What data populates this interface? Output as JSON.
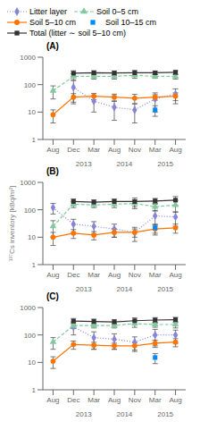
{
  "chart_data": [
    {
      "type": "line",
      "title": "(A)",
      "legend": "top",
      "log": "y",
      "ylim": [
        1,
        1000
      ],
      "yticks": [
        1,
        10,
        100,
        1000
      ],
      "categories": [
        "Aug",
        "Dec",
        "Mar",
        "Aug",
        "Nov",
        "Mar",
        "Aug"
      ],
      "annotations": [
        {
          "text": "2013",
          "x": 1.5
        },
        {
          "text": "2014",
          "x": 3.5
        },
        {
          "text": "2015",
          "x": 5.5
        }
      ],
      "series": [
        {
          "name": "Litter layer",
          "color": "#8884d8",
          "marker": "diamond",
          "line_style": "dotted",
          "values": [
            null,
            80,
            25,
            15,
            12,
            30,
            45
          ],
          "errors": [
            null,
            60,
            15,
            10,
            8,
            20,
            25
          ]
        },
        {
          "name": "Soil 0–5 cm",
          "color": "#82ca9d",
          "marker": "triangle",
          "line_style": "dashed",
          "values": [
            60,
            200,
            200,
            200,
            220,
            200,
            200
          ],
          "errors": [
            30,
            50,
            40,
            40,
            50,
            30,
            40
          ]
        },
        {
          "name": "Soil 5–10 cm",
          "color": "#ff7300",
          "marker": "circle",
          "line_style": "solid",
          "values": [
            8,
            35,
            38,
            35,
            32,
            35,
            38
          ],
          "errors": [
            4,
            12,
            10,
            10,
            12,
            8,
            12
          ]
        },
        {
          "name": "Soil 10–15 cm",
          "color": "#0088fe",
          "marker": "square",
          "line_style": "none",
          "values": [
            null,
            null,
            null,
            null,
            null,
            12,
            null
          ],
          "errors": [
            null,
            null,
            null,
            null,
            null,
            5,
            null
          ]
        },
        {
          "name": "Total (litter ∼ soil 5–10 cm)",
          "color": "#333333",
          "marker": "square",
          "line_style": "solid",
          "values": [
            null,
            260,
            270,
            265,
            270,
            270,
            280
          ],
          "errors": [
            null,
            60,
            50,
            50,
            60,
            40,
            50
          ]
        }
      ]
    },
    {
      "type": "line",
      "title": "(B)",
      "y_label": "¹³⁷Cs inventory [kBq/m²]",
      "log": "y",
      "ylim": [
        1,
        1000
      ],
      "yticks": [
        1,
        10,
        100,
        1000
      ],
      "categories": [
        "Aug",
        "Dec",
        "Mar",
        "Aug",
        "Nov",
        "Mar",
        "Aug"
      ],
      "annotations": [
        {
          "text": "2013",
          "x": 1.5
        },
        {
          "text": "2014",
          "x": 3.5
        },
        {
          "text": "2015",
          "x": 5.5
        }
      ],
      "series": [
        {
          "name": "Litter layer",
          "color": "#8884d8",
          "marker": "diamond",
          "line_style": "dotted",
          "values": [
            120,
            30,
            25,
            20,
            15,
            60,
            55
          ],
          "errors": [
            50,
            15,
            12,
            10,
            8,
            35,
            30
          ]
        },
        {
          "name": "Soil 0–5 cm",
          "color": "#82ca9d",
          "marker": "triangle",
          "line_style": "dashed",
          "values": [
            25,
            160,
            150,
            160,
            170,
            130,
            150
          ],
          "errors": [
            15,
            40,
            30,
            40,
            60,
            40,
            70
          ]
        },
        {
          "name": "Soil 5–10 cm",
          "color": "#ff7300",
          "marker": "circle",
          "line_style": "solid",
          "values": [
            10,
            14,
            12,
            15,
            15,
            20,
            22
          ],
          "errors": [
            5,
            5,
            4,
            5,
            5,
            8,
            8
          ]
        },
        {
          "name": "Soil 10–15 cm",
          "color": "#0088fe",
          "marker": "square",
          "line_style": "none",
          "values": [
            null,
            null,
            null,
            null,
            null,
            22,
            null
          ],
          "errors": [
            null,
            null,
            null,
            null,
            null,
            8,
            null
          ]
        },
        {
          "name": "Total (litter ∼ soil 5–10 cm)",
          "color": "#333333",
          "marker": "square",
          "line_style": "solid",
          "values": [
            null,
            200,
            190,
            200,
            200,
            210,
            225
          ],
          "errors": [
            null,
            50,
            40,
            50,
            70,
            50,
            80
          ]
        }
      ]
    },
    {
      "type": "line",
      "title": "(C)",
      "log": "y",
      "ylim": [
        1,
        1000
      ],
      "yticks": [
        1,
        10,
        100,
        1000
      ],
      "categories": [
        "Aug",
        "Dec",
        "Mar",
        "Aug",
        "Nov",
        "Mar",
        "Aug"
      ],
      "annotations": [
        {
          "text": "2013",
          "x": 1.5
        },
        {
          "text": "2014",
          "x": 3.5
        },
        {
          "text": "2015",
          "x": 5.5
        }
      ],
      "series": [
        {
          "name": "Litter layer",
          "color": "#8884d8",
          "marker": "diamond",
          "line_style": "dotted",
          "values": [
            null,
            200,
            80,
            70,
            55,
            100,
            100
          ],
          "errors": [
            null,
            100,
            50,
            40,
            30,
            60,
            50
          ]
        },
        {
          "name": "Soil 0–5 cm",
          "color": "#82ca9d",
          "marker": "triangle",
          "line_style": "dashed",
          "values": [
            55,
            220,
            220,
            220,
            260,
            240,
            240
          ],
          "errors": [
            25,
            50,
            40,
            40,
            70,
            50,
            60
          ]
        },
        {
          "name": "Soil 5–10 cm",
          "color": "#ff7300",
          "marker": "circle",
          "line_style": "solid",
          "values": [
            11,
            45,
            42,
            40,
            40,
            50,
            55
          ],
          "errors": [
            5,
            15,
            12,
            10,
            12,
            15,
            18
          ]
        },
        {
          "name": "Soil 10–15 cm",
          "color": "#0088fe",
          "marker": "square",
          "line_style": "none",
          "values": [
            null,
            null,
            null,
            null,
            null,
            15,
            null
          ],
          "errors": [
            null,
            null,
            null,
            null,
            null,
            6,
            null
          ]
        },
        {
          "name": "Total (litter ∼ soil 5–10 cm)",
          "color": "#333333",
          "marker": "square",
          "line_style": "solid",
          "values": [
            null,
            320,
            310,
            300,
            330,
            350,
            360
          ],
          "errors": [
            null,
            80,
            70,
            60,
            90,
            80,
            80
          ]
        }
      ]
    }
  ]
}
